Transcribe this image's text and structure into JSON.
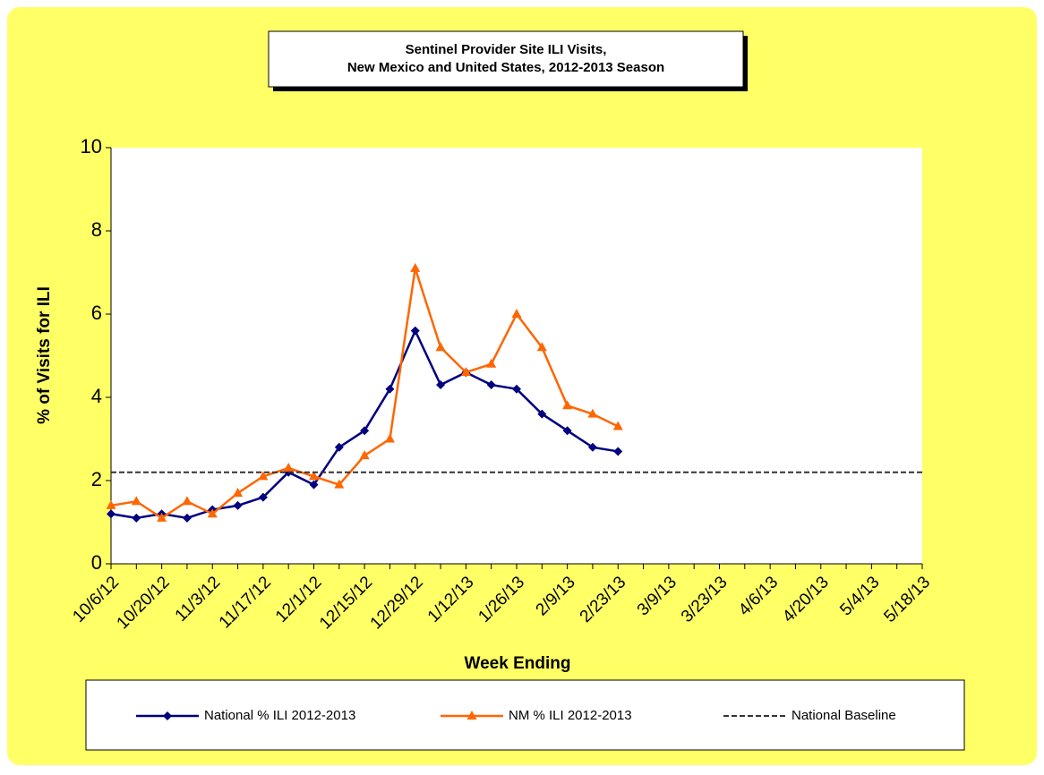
{
  "chart_data": {
    "type": "line",
    "title": [
      "Sentinel Provider Site ILI Visits,",
      "New Mexico and United States,  2012-2013 Season"
    ],
    "x_label": "Week Ending",
    "y_label": "% of Visits for ILI",
    "categories": [
      "10/6/12",
      null,
      "10/20/12",
      null,
      "11/3/12",
      null,
      "11/17/12",
      null,
      "12/1/12",
      null,
      "12/15/12",
      null,
      "12/29/12",
      null,
      "1/12/13",
      null,
      "1/26/13",
      null,
      "2/9/13",
      null,
      "2/23/13",
      null,
      "3/9/13",
      null,
      "3/23/13",
      null,
      "4/6/13",
      null,
      "4/20/13",
      null,
      "5/4/13",
      null,
      "5/18/13"
    ],
    "series": [
      {
        "name": "National % ILI 2012-2013",
        "color": "#000080",
        "marker": "diamond",
        "values": [
          1.2,
          1.1,
          1.2,
          1.1,
          1.3,
          1.4,
          1.6,
          2.2,
          1.9,
          2.8,
          3.2,
          4.2,
          5.6,
          4.3,
          4.6,
          4.3,
          4.2,
          3.6,
          3.2,
          2.8,
          2.7,
          null,
          null,
          null,
          null,
          null,
          null,
          null,
          null,
          null,
          null,
          null,
          null
        ]
      },
      {
        "name": "NM % ILI 2012-2013",
        "color": "#ff6600",
        "marker": "triangle",
        "values": [
          1.4,
          1.5,
          1.1,
          1.5,
          1.2,
          1.7,
          2.1,
          2.3,
          2.1,
          1.9,
          2.6,
          3.0,
          7.1,
          5.2,
          4.6,
          4.8,
          6.0,
          5.2,
          3.8,
          3.6,
          3.3,
          null,
          null,
          null,
          null,
          null,
          null,
          null,
          null,
          null,
          null,
          null,
          null
        ]
      },
      {
        "name": "National Baseline",
        "color": "#333333",
        "marker": "none",
        "dashed": true,
        "values": [
          2.2,
          2.2,
          2.2,
          2.2,
          2.2,
          2.2,
          2.2,
          2.2,
          2.2,
          2.2,
          2.2,
          2.2,
          2.2,
          2.2,
          2.2,
          2.2,
          2.2,
          2.2,
          2.2,
          2.2,
          2.2,
          2.2,
          2.2,
          2.2,
          2.2,
          2.2,
          2.2,
          2.2,
          2.2,
          2.2,
          2.2,
          2.2,
          2.2
        ]
      }
    ],
    "ylim": [
      0,
      10
    ],
    "yticks": [
      0,
      2,
      4,
      6,
      8,
      10
    ],
    "grid": false,
    "background": "#ffff66"
  }
}
